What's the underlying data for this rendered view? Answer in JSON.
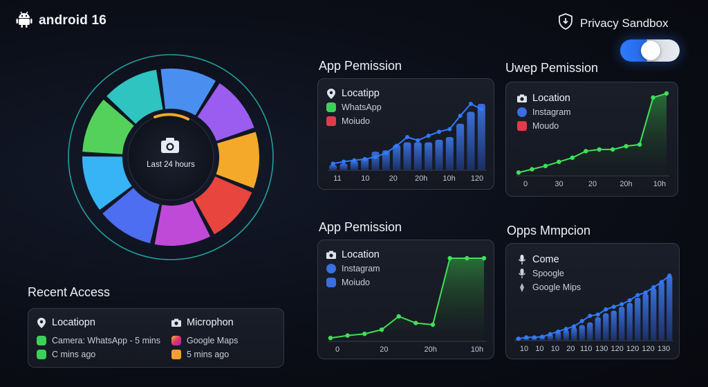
{
  "header": {
    "brand": "android 16",
    "privacy_label": "Privacy Sandbox",
    "toggle_on": true
  },
  "colors": {
    "accent_blue": "#2f7bff",
    "line_green": "#3fe05a",
    "bar_blue": "#2f62c9"
  },
  "ring": {
    "center_label": "Last 24 hours",
    "segments": [
      "#4a8ff0",
      "#9b5cf0",
      "#f4a92a",
      "#e8453f",
      "#c04ad8",
      "#4d6ef0",
      "#37b4f5",
      "#54d15a",
      "#2fc4c0"
    ]
  },
  "panels": {
    "p1": {
      "title": "App Pemission",
      "items": [
        {
          "label": "Locatipp",
          "icon": "location-pin-icon"
        },
        {
          "label": "WhatsApp",
          "icon": "whatsapp-icon"
        },
        {
          "label": "Moiudo",
          "icon": "red-app-icon"
        }
      ]
    },
    "p2": {
      "title": "Uwep Pemission",
      "items": [
        {
          "label": "Location",
          "icon": "camera-icon"
        },
        {
          "label": "Instagram",
          "icon": "instagram-icon"
        },
        {
          "label": "Moudo",
          "icon": "red-app-icon"
        }
      ]
    },
    "p3": {
      "title": "App Pemission",
      "items": [
        {
          "label": "Location",
          "icon": "camera-icon"
        },
        {
          "label": "Instagram",
          "icon": "instagram-icon"
        },
        {
          "label": "Moiudo",
          "icon": "blue-app-icon"
        }
      ]
    },
    "p4": {
      "title": "Opps Mmpcion",
      "items": [
        {
          "label": "Come",
          "icon": "microphone-icon"
        },
        {
          "label": "Spoogle",
          "icon": "microphone-icon"
        },
        {
          "label": "Google Mips",
          "icon": "maps-icon"
        }
      ]
    }
  },
  "chart_data": [
    {
      "type": "bar",
      "panel": "p1",
      "x_tick_labels": [
        "11",
        "10",
        "20",
        "20h",
        "10h",
        "120"
      ],
      "bars": [
        0.08,
        0.1,
        0.14,
        0.18,
        0.28,
        0.3,
        0.38,
        0.42,
        0.42,
        0.42,
        0.46,
        0.5,
        0.7,
        0.88,
        1.0
      ],
      "line": [
        0.1,
        0.13,
        0.15,
        0.17,
        0.2,
        0.26,
        0.37,
        0.5,
        0.45,
        0.52,
        0.58,
        0.62,
        0.82,
        1.0,
        0.92
      ],
      "ylim": [
        0,
        1
      ]
    },
    {
      "type": "area",
      "panel": "p2",
      "x_tick_labels": [
        "0",
        "30",
        "20",
        "20h",
        "10h"
      ],
      "line": [
        0.04,
        0.08,
        0.12,
        0.17,
        0.22,
        0.3,
        0.32,
        0.32,
        0.36,
        0.38,
        0.95,
        1.0
      ],
      "ylim": [
        0,
        1
      ]
    },
    {
      "type": "area",
      "panel": "p3",
      "x_tick_labels": [
        "0",
        "20",
        "20h",
        "10h"
      ],
      "line": [
        0.04,
        0.07,
        0.09,
        0.14,
        0.3,
        0.22,
        0.2,
        1.0,
        1.0,
        1.0
      ],
      "ylim": [
        0,
        1
      ]
    },
    {
      "type": "bar",
      "panel": "p4",
      "x_tick_labels": [
        "10",
        "10",
        "10",
        "20",
        "110",
        "130",
        "120",
        "120",
        "120",
        "130"
      ],
      "bars": [
        0.04,
        0.05,
        0.06,
        0.08,
        0.1,
        0.14,
        0.16,
        0.2,
        0.24,
        0.28,
        0.36,
        0.42,
        0.46,
        0.52,
        0.58,
        0.66,
        0.72,
        0.8,
        0.9,
        1.0
      ],
      "line": [
        0.03,
        0.05,
        0.05,
        0.06,
        0.1,
        0.14,
        0.18,
        0.22,
        0.3,
        0.38,
        0.4,
        0.48,
        0.52,
        0.56,
        0.62,
        0.7,
        0.74,
        0.82,
        0.9,
        1.0
      ],
      "ylim": [
        0,
        1
      ]
    }
  ],
  "recent": {
    "title": "Recent Access",
    "col1_header": "Locatiopn",
    "col1_rows": [
      {
        "label": "Camera: WhatsApp - 5 mins",
        "icon": "whatsapp-icon"
      },
      {
        "label": "C mins ago",
        "icon": "green-app-icon"
      }
    ],
    "col2_header": "Microphon",
    "col2_rows": [
      {
        "label": "Google Maps",
        "icon": "instagram-icon"
      },
      {
        "label": "5 mins ago",
        "icon": "orange-app-icon"
      }
    ]
  }
}
